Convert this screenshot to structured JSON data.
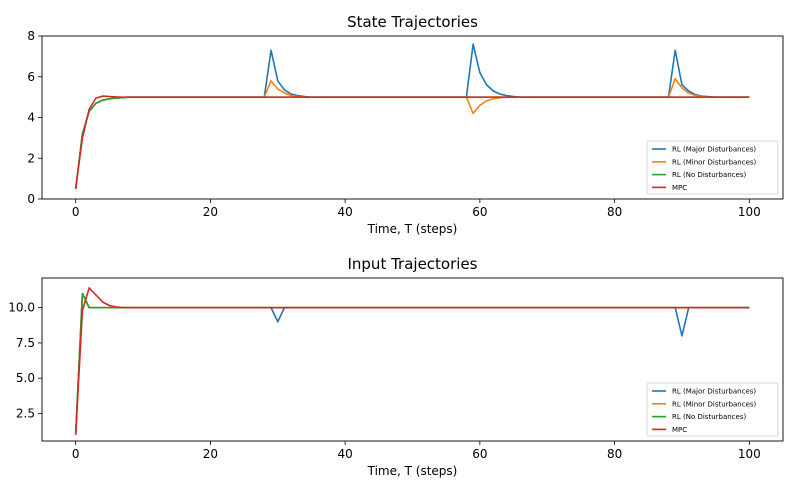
{
  "chart_data": [
    {
      "type": "line",
      "title": "State Trajectories",
      "xlabel": "Time, T (steps)",
      "ylabel": "",
      "xlim": [
        -5,
        105
      ],
      "ylim": [
        0,
        8
      ],
      "xticks": [
        0,
        20,
        40,
        60,
        80,
        100
      ],
      "yticks": [
        0,
        2,
        4,
        6,
        8
      ],
      "ytick_labels": [
        "0",
        "2",
        "4",
        "6",
        "8"
      ],
      "grid": false,
      "legend": "lower-right",
      "series": [
        {
          "name": "RL (Major Disturbances)",
          "color": "#1f77b4",
          "points": [
            [
              0,
              0.5
            ],
            [
              1,
              3.2
            ],
            [
              2,
              4.3
            ],
            [
              3,
              4.7
            ],
            [
              4,
              4.85
            ],
            [
              5,
              4.92
            ],
            [
              6,
              4.96
            ],
            [
              7,
              4.98
            ],
            [
              8,
              5.0
            ],
            [
              28,
              5.0
            ],
            [
              29,
              7.3
            ],
            [
              30,
              5.8
            ],
            [
              31,
              5.35
            ],
            [
              32,
              5.15
            ],
            [
              33,
              5.07
            ],
            [
              34,
              5.03
            ],
            [
              35,
              5.0
            ],
            [
              58,
              5.0
            ],
            [
              59,
              7.6
            ],
            [
              60,
              6.2
            ],
            [
              61,
              5.6
            ],
            [
              62,
              5.3
            ],
            [
              63,
              5.15
            ],
            [
              64,
              5.07
            ],
            [
              65,
              5.03
            ],
            [
              66,
              5.0
            ],
            [
              88,
              5.0
            ],
            [
              89,
              7.3
            ],
            [
              90,
              5.6
            ],
            [
              91,
              5.3
            ],
            [
              92,
              5.12
            ],
            [
              93,
              5.05
            ],
            [
              94,
              5.02
            ],
            [
              95,
              5.0
            ],
            [
              100,
              5.0
            ]
          ]
        },
        {
          "name": "RL (Minor Disturbances)",
          "color": "#ff7f0e",
          "points": [
            [
              0,
              0.5
            ],
            [
              1,
              3.2
            ],
            [
              2,
              4.3
            ],
            [
              3,
              4.7
            ],
            [
              4,
              4.85
            ],
            [
              5,
              4.92
            ],
            [
              6,
              4.96
            ],
            [
              7,
              4.98
            ],
            [
              8,
              5.0
            ],
            [
              28,
              5.0
            ],
            [
              29,
              5.8
            ],
            [
              30,
              5.4
            ],
            [
              31,
              5.2
            ],
            [
              32,
              5.08
            ],
            [
              33,
              5.03
            ],
            [
              34,
              5.0
            ],
            [
              58,
              5.0
            ],
            [
              59,
              4.2
            ],
            [
              60,
              4.6
            ],
            [
              61,
              4.82
            ],
            [
              62,
              4.92
            ],
            [
              63,
              4.97
            ],
            [
              64,
              5.0
            ],
            [
              88,
              5.0
            ],
            [
              89,
              5.9
            ],
            [
              90,
              5.45
            ],
            [
              91,
              5.2
            ],
            [
              92,
              5.08
            ],
            [
              93,
              5.03
            ],
            [
              94,
              5.0
            ],
            [
              100,
              5.0
            ]
          ]
        },
        {
          "name": "RL (No Disturbances)",
          "color": "#2ca02c",
          "points": [
            [
              0,
              0.5
            ],
            [
              1,
              3.2
            ],
            [
              2,
              4.3
            ],
            [
              3,
              4.7
            ],
            [
              4,
              4.85
            ],
            [
              5,
              4.92
            ],
            [
              6,
              4.96
            ],
            [
              7,
              4.98
            ],
            [
              8,
              5.0
            ],
            [
              100,
              5.0
            ]
          ]
        },
        {
          "name": "MPC",
          "color": "#d62728",
          "points": [
            [
              0,
              0.5
            ],
            [
              1,
              3.0
            ],
            [
              2,
              4.4
            ],
            [
              3,
              4.95
            ],
            [
              4,
              5.05
            ],
            [
              5,
              5.03
            ],
            [
              6,
              5.01
            ],
            [
              7,
              5.0
            ],
            [
              100,
              5.0
            ]
          ]
        }
      ]
    },
    {
      "type": "line",
      "title": "Input Trajectories",
      "xlabel": "Time, T (steps)",
      "ylabel": "",
      "xlim": [
        -5,
        105
      ],
      "ylim": [
        0.55,
        12.1
      ],
      "xticks": [
        0,
        20,
        40,
        60,
        80,
        100
      ],
      "yticks": [
        2.5,
        5.0,
        7.5,
        10.0
      ],
      "ytick_labels": [
        "2.5",
        "5.0",
        "7.5",
        "10.0"
      ],
      "grid": false,
      "legend": "lower-right",
      "series": [
        {
          "name": "RL (Major Disturbances)",
          "color": "#1f77b4",
          "points": [
            [
              0,
              1.0
            ],
            [
              1,
              11.0
            ],
            [
              2,
              10.0
            ],
            [
              29,
              10.0
            ],
            [
              30,
              9.0
            ],
            [
              31,
              10.0
            ],
            [
              89,
              10.0
            ],
            [
              90,
              8.0
            ],
            [
              91,
              10.0
            ],
            [
              100,
              10.0
            ]
          ]
        },
        {
          "name": "RL (Minor Disturbances)",
          "color": "#ff7f0e",
          "points": [
            [
              0,
              1.0
            ],
            [
              1,
              11.0
            ],
            [
              2,
              10.0
            ],
            [
              100,
              10.0
            ]
          ]
        },
        {
          "name": "RL (No Disturbances)",
          "color": "#2ca02c",
          "points": [
            [
              0,
              1.0
            ],
            [
              1,
              11.0
            ],
            [
              2,
              10.0
            ],
            [
              100,
              10.0
            ]
          ]
        },
        {
          "name": "MPC",
          "color": "#d62728",
          "points": [
            [
              0,
              1.0
            ],
            [
              1,
              9.8
            ],
            [
              2,
              11.4
            ],
            [
              3,
              10.9
            ],
            [
              4,
              10.4
            ],
            [
              5,
              10.15
            ],
            [
              6,
              10.05
            ],
            [
              7,
              10.0
            ],
            [
              100,
              10.0
            ]
          ]
        }
      ]
    }
  ]
}
